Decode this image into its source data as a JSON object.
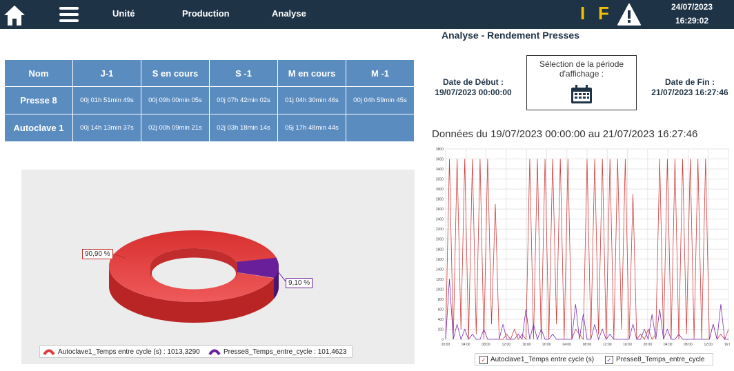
{
  "header": {
    "nav": [
      "Unité",
      "Production",
      "Analyse"
    ],
    "logo_i": "I",
    "logo_f": "F",
    "date": "24/07/2023",
    "time": "16:29:02",
    "icons": [
      "home-icon",
      "menu-icon",
      "warning-icon"
    ]
  },
  "page_title": "Analyse - Rendement Presses",
  "table": {
    "headers": [
      "Nom",
      "J-1",
      "S en cours",
      "S -1",
      "M en cours",
      "M -1"
    ],
    "rows": [
      {
        "name": "Presse 8",
        "cells": [
          "00j 01h 51min 49s",
          "00j 09h 00min 05s",
          "00j 07h 42min 02s",
          "01j 04h 30min 46s",
          "00j 04h 59min 45s"
        ]
      },
      {
        "name": "Autoclave 1",
        "cells": [
          "00j 14h 13min 37s",
          "02j 00h 09min 21s",
          "02j 03h 18min 14s",
          "05j 17h 48min 44s",
          ""
        ]
      }
    ]
  },
  "period": {
    "start_label": "Date de Début :",
    "start_value": "19/07/2023 00:00:00",
    "selector_label": "Sélection de la période d'affichage :",
    "end_label": "Date de Fin :",
    "end_value": "21/07/2023 16:27:46"
  },
  "data_title": "Données du 19/07/2023 00:00:00 au 21/07/2023 16:27:46",
  "colors": {
    "header_bg": "#1f3346",
    "table_bg": "#5b8cc0",
    "red": "#e03a3a",
    "purple": "#6a1f9a",
    "accent": "#f2c200"
  },
  "chart_data": [
    {
      "type": "pie",
      "style": "3d-donut",
      "labels": [
        "Autoclave1_Temps entre cycle (s)",
        "Presse8_Temps_entre_cycle"
      ],
      "values": [
        1013.329,
        101.4623
      ],
      "value_labels": [
        "1013,3290",
        "101,4623"
      ],
      "percent_labels": [
        "90,90 %",
        "9,10 %"
      ],
      "colors": [
        "#e03a3a",
        "#6a1f9a"
      ],
      "legend": "bottom"
    },
    {
      "type": "line",
      "x_ticks": [
        "20:00",
        "04:00",
        "08:00",
        "12:00",
        "16:00",
        "20:00",
        "04:00",
        "08:00",
        "12:00",
        "16:00",
        "20:00",
        "04:00",
        "08:00",
        "12:00",
        "16:00"
      ],
      "y_ticks": [
        0,
        200,
        400,
        600,
        800,
        1000,
        1200,
        1400,
        1600,
        1800,
        2000,
        2200,
        2400,
        2600,
        2800,
        3000,
        3200,
        3400,
        3600,
        3800
      ],
      "ylim": [
        0,
        3800
      ],
      "grid": true,
      "legend": "bottom",
      "series": [
        {
          "name": "Autoclave1_Temps entre cycle (s)",
          "color": "#d23a3a",
          "values": [
            0,
            3600,
            0,
            3600,
            200,
            3600,
            0,
            3600,
            100,
            3600,
            0,
            3600,
            300,
            2700,
            0,
            0,
            100,
            0,
            200,
            0,
            100,
            0,
            3600,
            0,
            3600,
            0,
            3600,
            0,
            3600,
            300,
            3600,
            0,
            3600,
            0,
            200,
            100,
            0,
            3600,
            0,
            3600,
            100,
            3600,
            0,
            3600,
            0,
            3600,
            200,
            3600,
            0,
            2900,
            0,
            100,
            0,
            200,
            0,
            100,
            3600,
            0,
            3600,
            0,
            3600,
            0,
            3600,
            100,
            3600,
            0,
            3600,
            0,
            3600,
            0,
            300,
            0,
            100,
            0,
            200
          ]
        },
        {
          "name": "Presse8_Temps_entre_cycle",
          "color": "#7a2fb0",
          "values": [
            0,
            1200,
            0,
            300,
            0,
            200,
            0,
            100,
            0,
            0,
            200,
            0,
            0,
            0,
            0,
            300,
            0,
            0,
            0,
            100,
            0,
            600,
            0,
            300,
            0,
            200,
            0,
            0,
            100,
            0,
            0,
            0,
            0,
            0,
            700,
            0,
            500,
            0,
            0,
            300,
            0,
            200,
            0,
            100,
            0,
            0,
            0,
            0,
            0,
            300,
            0,
            0,
            200,
            0,
            500,
            0,
            600,
            0,
            200,
            0,
            0,
            100,
            0,
            0,
            0,
            0,
            0,
            0,
            0,
            0,
            300,
            0,
            700,
            0,
            0
          ]
        }
      ]
    }
  ]
}
